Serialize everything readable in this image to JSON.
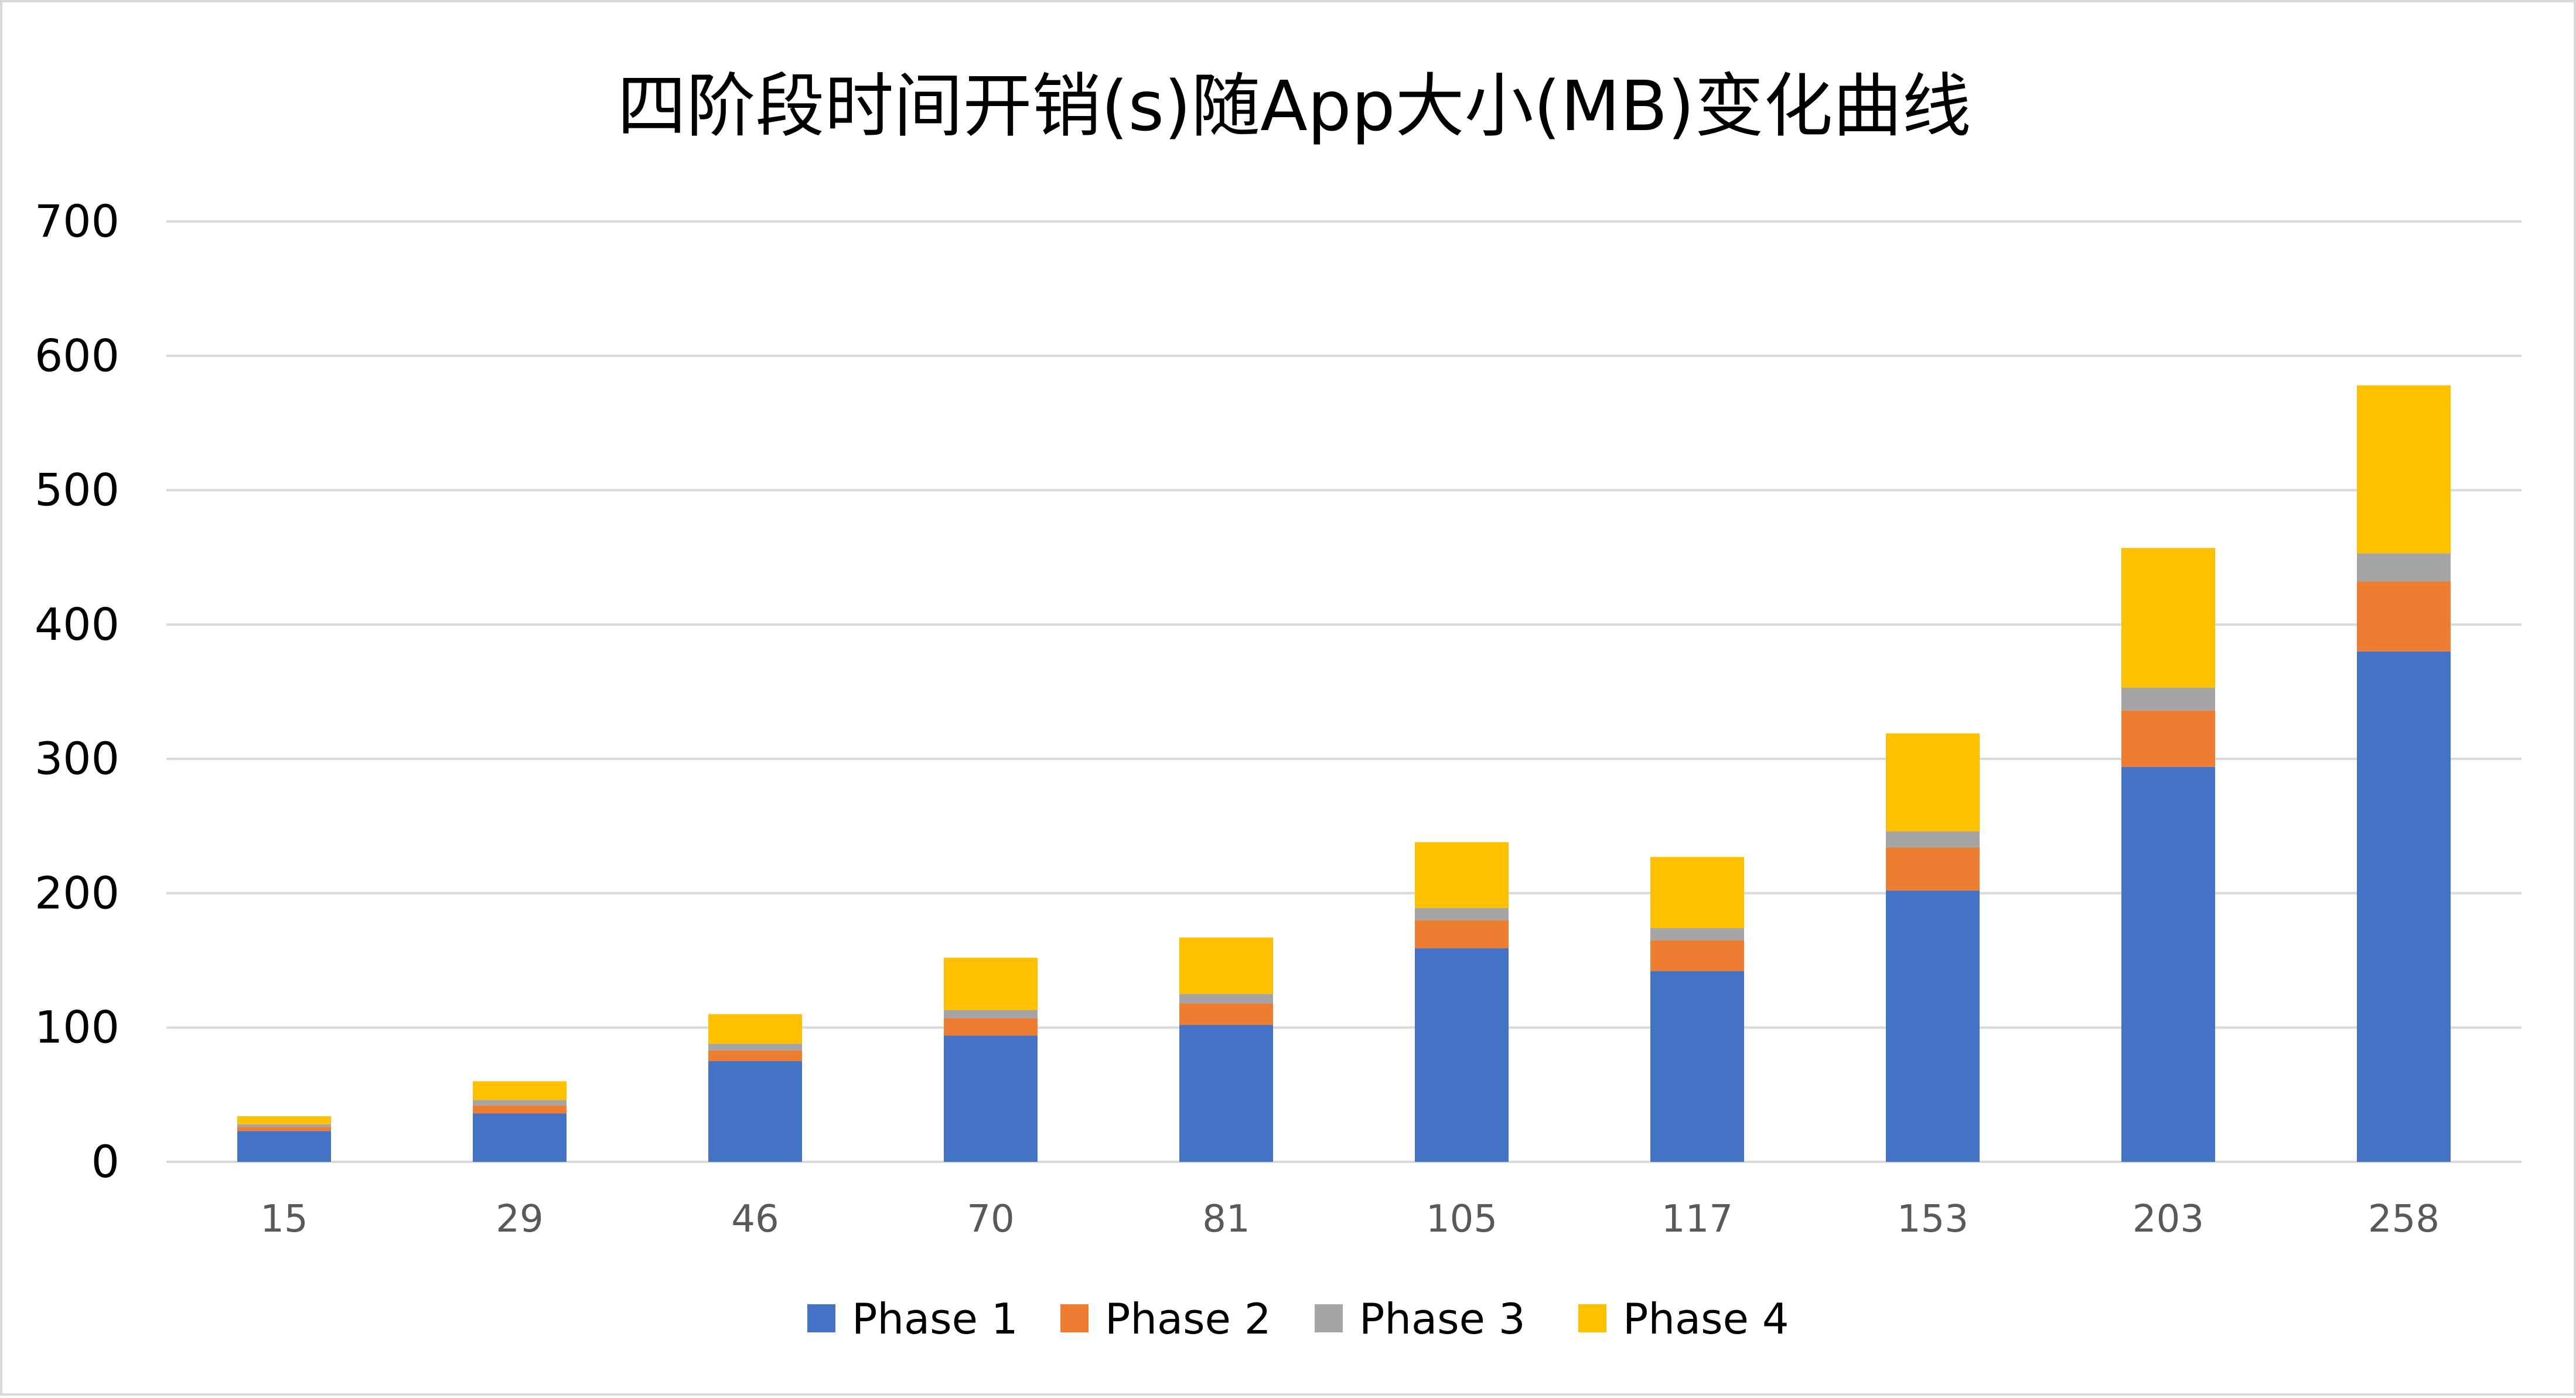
{
  "chart_data": {
    "type": "bar",
    "stacked": true,
    "title": "四阶段时间开销(s)随App大小(MB)变化曲线",
    "xlabel": "",
    "ylabel": "",
    "categories": [
      "15",
      "29",
      "46",
      "70",
      "81",
      "105",
      "117",
      "153",
      "203",
      "258"
    ],
    "ylim": [
      0,
      700
    ],
    "yticks": [
      0,
      100,
      200,
      300,
      400,
      500,
      600,
      700
    ],
    "grid": true,
    "legend_position": "bottom",
    "series": [
      {
        "name": "Phase 1",
        "color": "#4472C4",
        "values": [
          23,
          36,
          75,
          94,
          102,
          159,
          142,
          202,
          294,
          380
        ]
      },
      {
        "name": "Phase 2",
        "color": "#ED7D31",
        "values": [
          3,
          6,
          8,
          13,
          16,
          21,
          23,
          32,
          42,
          52
        ]
      },
      {
        "name": "Phase 3",
        "color": "#A5A5A5",
        "values": [
          2,
          4,
          5,
          6,
          7,
          9,
          9,
          12,
          17,
          21
        ]
      },
      {
        "name": "Phase 4",
        "color": "#FFC000",
        "values": [
          6,
          14,
          22,
          39,
          42,
          49,
          53,
          73,
          104,
          125
        ]
      }
    ]
  }
}
